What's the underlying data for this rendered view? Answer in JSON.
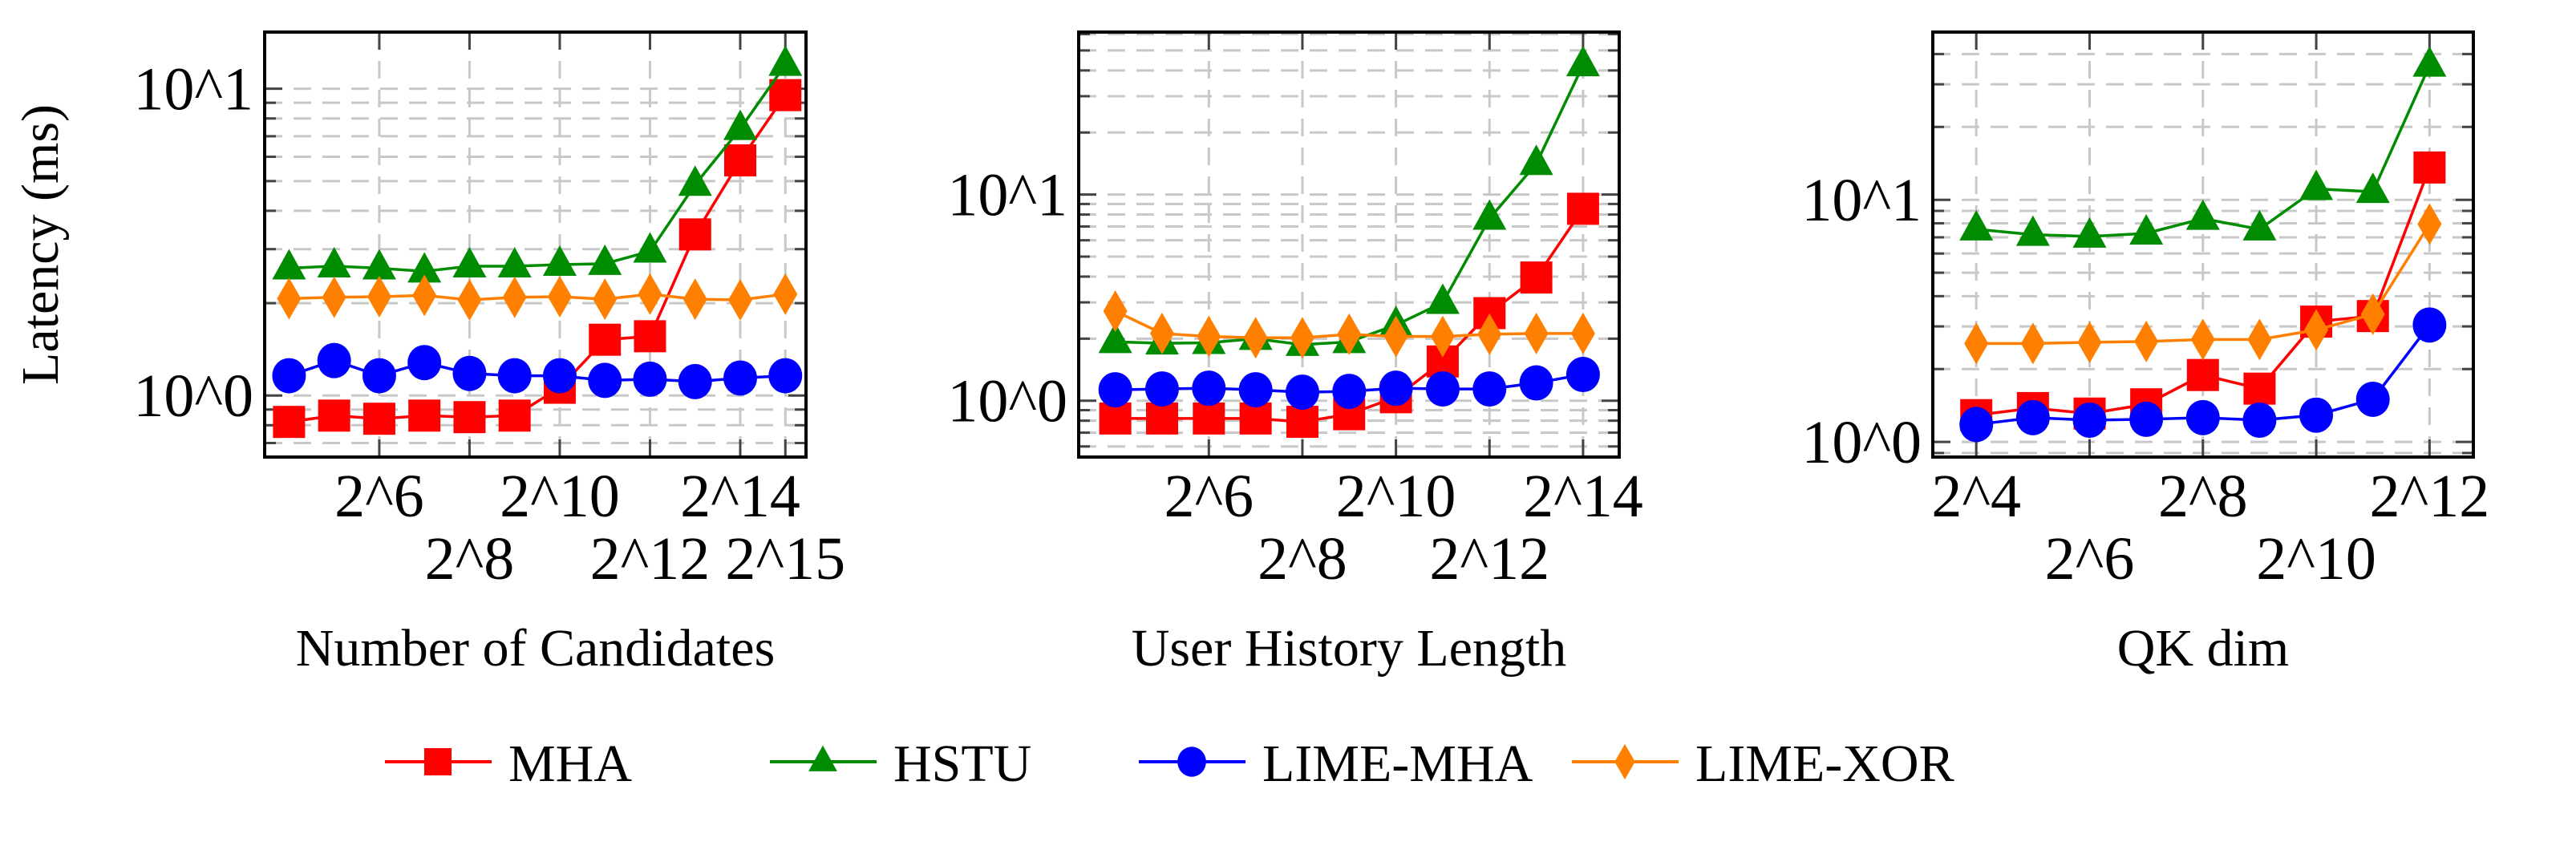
{
  "legend": [
    {
      "name": "MHA",
      "color": "#ff0000",
      "marker": "square"
    },
    {
      "name": "HSTU",
      "color": "#008c00",
      "marker": "triangle"
    },
    {
      "name": "LIME-MHA",
      "color": "#0000ff",
      "marker": "circle"
    },
    {
      "name": "LIME-XOR",
      "color": "#ff8000",
      "marker": "diamond"
    }
  ],
  "chart_data": [
    {
      "type": "line",
      "xlabel": "Number of Candidates",
      "ylabel": "Latency (ms)",
      "xscale": "log2",
      "yscale": "log10",
      "grid": true,
      "x": [
        16,
        32,
        64,
        128,
        256,
        512,
        1024,
        2048,
        4096,
        8192,
        16384,
        32768
      ],
      "xticks": [
        64,
        256,
        1024,
        4096,
        16384,
        32768
      ],
      "xtick_labels": [
        "2^6",
        "2^8",
        "2^10",
        "2^12",
        "2^14",
        "2^15"
      ],
      "yticks": [
        1,
        10
      ],
      "ytick_labels": [
        "10^0",
        "10^1"
      ],
      "xlim": [
        11,
        45000
      ],
      "ylim": [
        0.63,
        15.3
      ],
      "series": [
        {
          "name": "MHA",
          "values": [
            0.82,
            0.86,
            0.84,
            0.86,
            0.85,
            0.86,
            1.06,
            1.52,
            1.56,
            3.35,
            5.84,
            9.53
          ]
        },
        {
          "name": "HSTU",
          "values": [
            2.6,
            2.64,
            2.6,
            2.54,
            2.64,
            2.64,
            2.67,
            2.69,
            2.95,
            4.87,
            7.4,
            11.98
          ]
        },
        {
          "name": "LIME-MHA",
          "values": [
            1.16,
            1.3,
            1.16,
            1.28,
            1.18,
            1.16,
            1.16,
            1.12,
            1.13,
            1.11,
            1.14,
            1.16
          ]
        },
        {
          "name": "LIME-XOR",
          "values": [
            2.07,
            2.09,
            2.1,
            2.12,
            2.05,
            2.09,
            2.1,
            2.06,
            2.14,
            2.06,
            2.05,
            2.14
          ]
        }
      ]
    },
    {
      "type": "line",
      "xlabel": "User History Length",
      "ylabel": "",
      "xscale": "log2",
      "yscale": "log10",
      "grid": true,
      "x": [
        16,
        32,
        64,
        128,
        256,
        512,
        1024,
        2048,
        4096,
        8192,
        16384
      ],
      "xticks": [
        64,
        256,
        1024,
        4096,
        16384
      ],
      "xtick_labels": [
        "2^6",
        "2^8",
        "2^10",
        "2^12",
        "2^14"
      ],
      "yticks": [
        1,
        10
      ],
      "ytick_labels": [
        "10^0",
        "10^1"
      ],
      "xlim": [
        9.3,
        28000
      ],
      "ylim": [
        0.533,
        61.4
      ],
      "series": [
        {
          "name": "MHA",
          "values": [
            0.82,
            0.82,
            0.82,
            0.82,
            0.79,
            0.86,
            1.04,
            1.55,
            2.66,
            3.96,
            8.53
          ]
        },
        {
          "name": "HSTU",
          "values": [
            1.93,
            1.9,
            1.91,
            2.0,
            1.87,
            1.93,
            2.33,
            2.99,
            7.65,
            14.1,
            42.5
          ]
        },
        {
          "name": "LIME-MHA",
          "values": [
            1.13,
            1.14,
            1.15,
            1.13,
            1.1,
            1.11,
            1.15,
            1.14,
            1.14,
            1.22,
            1.34
          ]
        },
        {
          "name": "LIME-XOR",
          "values": [
            2.72,
            2.12,
            2.05,
            2.02,
            2.02,
            2.1,
            2.05,
            2.05,
            2.1,
            2.12,
            2.12
          ]
        }
      ]
    },
    {
      "type": "line",
      "xlabel": "QK dim",
      "ylabel": "",
      "xscale": "log2",
      "yscale": "log10",
      "grid": true,
      "x": [
        16,
        32,
        64,
        128,
        256,
        512,
        1024,
        2048,
        4096
      ],
      "xticks": [
        16,
        64,
        256,
        1024,
        4096
      ],
      "xtick_labels": [
        "2^4",
        "2^6",
        "2^8",
        "2^10",
        "2^12"
      ],
      "yticks": [
        1,
        10
      ],
      "ytick_labels": [
        "10^0",
        "10^1"
      ],
      "xlim": [
        9.4,
        7000
      ],
      "ylim": [
        0.866,
        49.3
      ],
      "series": [
        {
          "name": "MHA",
          "values": [
            1.29,
            1.38,
            1.31,
            1.43,
            1.89,
            1.66,
            3.14,
            3.31,
            13.6
          ]
        },
        {
          "name": "HSTU",
          "values": [
            7.56,
            7.18,
            7.06,
            7.27,
            8.36,
            7.56,
            11.1,
            10.8,
            35.9
          ]
        },
        {
          "name": "LIME-MHA",
          "values": [
            1.18,
            1.26,
            1.23,
            1.24,
            1.26,
            1.23,
            1.29,
            1.5,
            3.04
          ]
        },
        {
          "name": "LIME-XOR",
          "values": [
            2.55,
            2.55,
            2.58,
            2.6,
            2.65,
            2.65,
            2.9,
            3.37,
            7.94
          ]
        }
      ]
    }
  ]
}
